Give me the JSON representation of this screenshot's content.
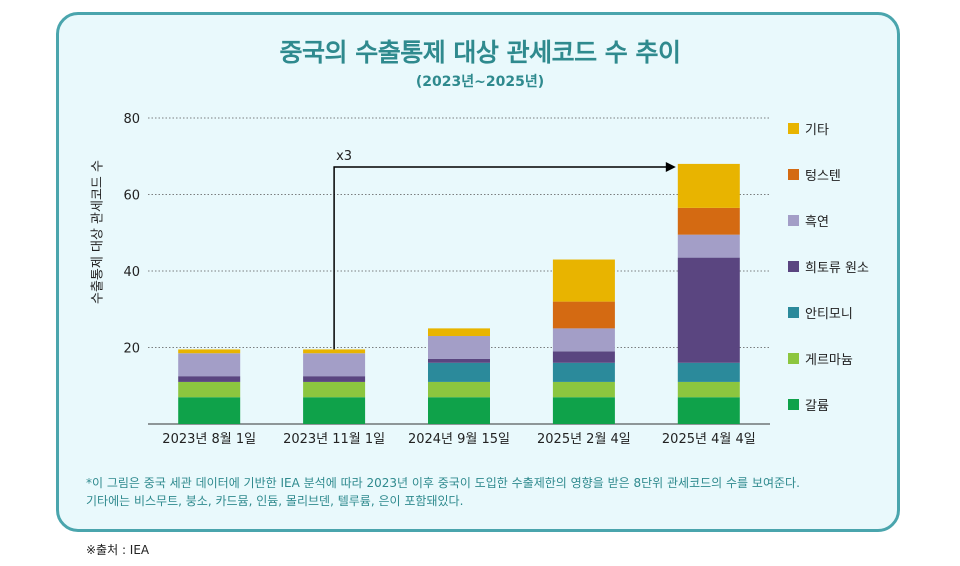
{
  "header": {
    "title": "중국의 수출통제 대상 관세코드 수 추이",
    "subtitle": "(2023년~2025년)"
  },
  "annotation": {
    "label": "x3"
  },
  "footnote": {
    "line1": "*이 그림은 중국 세관 데이터에 기반한 IEA 분석에 따라  2023년 이후 중국이 도입한 수출제한의 영향을 받은 8단위 관세코드의 수를 보여준다.",
    "line2": "기타에는 비스무트, 붕소, 카드뮴, 인듐, 몰리브덴, 텔루륨, 은이 포함돼있다."
  },
  "source": "※출처 : IEA",
  "colors": {
    "card_bg": "#e9f9fc",
    "card_border": "#4aa5ad",
    "title": "#2f8a8e"
  },
  "chart_data": {
    "type": "bar",
    "stacked": true,
    "title": "중국의 수출통제 대상 관세코드 수 추이",
    "subtitle": "(2023년~2025년)",
    "xlabel": "",
    "ylabel": "수출통제 대상 관세코드 수",
    "ylim": [
      0,
      80
    ],
    "yticks": [
      20,
      40,
      60,
      80
    ],
    "grid": true,
    "legend_position": "right",
    "categories": [
      "2023년 8월 1일",
      "2023년 11월 1일",
      "2024년 9월 15일",
      "2025년 2월 4일",
      "2025년 4월 4일"
    ],
    "series": [
      {
        "name": "갈륨",
        "color": "#0fa24a",
        "values": [
          7,
          7,
          7,
          7,
          7
        ]
      },
      {
        "name": "게르마늄",
        "color": "#8cc63f",
        "values": [
          4,
          4,
          4,
          4,
          4
        ]
      },
      {
        "name": "안티모니",
        "color": "#2b8a9b",
        "values": [
          0,
          0,
          5,
          5,
          5
        ]
      },
      {
        "name": "희토류 원소",
        "color": "#5a4580",
        "values": [
          1.5,
          1.5,
          1,
          3,
          27.5
        ]
      },
      {
        "name": "흑연",
        "color": "#a39ec7",
        "values": [
          6,
          6,
          6,
          6,
          6
        ]
      },
      {
        "name": "텅스텐",
        "color": "#d46a12",
        "values": [
          0,
          0,
          0,
          7,
          7
        ]
      },
      {
        "name": "기타",
        "color": "#e8b400",
        "values": [
          1,
          1,
          2,
          11,
          11.5
        ]
      }
    ]
  }
}
